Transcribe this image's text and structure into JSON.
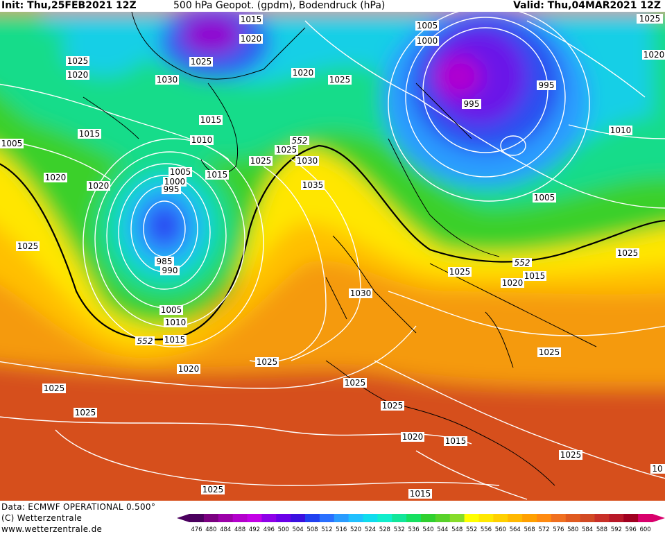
{
  "header": {
    "init": "Init: Thu,25FEB2021 12Z",
    "title": "500 hPa Geopot. (gpdm), Bodendruck (hPa)",
    "valid": "Valid: Thu,04MAR2021 12Z"
  },
  "footer": {
    "data_source": "Data: ECMWF OPERATIONAL 0.500°",
    "copyright": "(C) Wetterzentrale",
    "url": "www.wetterzentrale.de"
  },
  "legend": {
    "values": [
      "476",
      "480",
      "484",
      "488",
      "492",
      "496",
      "500",
      "504",
      "508",
      "512",
      "516",
      "520",
      "524",
      "528",
      "532",
      "536",
      "540",
      "544",
      "548",
      "552",
      "556",
      "560",
      "564",
      "568",
      "572",
      "576",
      "580",
      "584",
      "588",
      "592",
      "596",
      "600"
    ],
    "colors": [
      "#4b005e",
      "#7a0080",
      "#9b00a8",
      "#b300cc",
      "#c300e6",
      "#8e00e8",
      "#6a00e8",
      "#3a10e0",
      "#2040f0",
      "#2a70ff",
      "#2a9cff",
      "#20c0ff",
      "#10dcee",
      "#10eecc",
      "#12e69a",
      "#16e060",
      "#30d030",
      "#58d22a",
      "#86dc2a",
      "#ffff00",
      "#ffe800",
      "#ffd000",
      "#ffb800",
      "#ffa000",
      "#ff8a10",
      "#f07020",
      "#e05a20",
      "#d24a24",
      "#c83028",
      "#b81828",
      "#a00020",
      "#d8006c"
    ]
  },
  "map_labels": {
    "isobars": [
      "1015",
      "1020",
      "1025",
      "1030",
      "1025",
      "1020",
      "1005",
      "1000",
      "995",
      "1010",
      "1025",
      "1020",
      "1025",
      "1020",
      "1015",
      "1005",
      "1010",
      "1020",
      "1015",
      "1005",
      "1000",
      "995",
      "1010",
      "985",
      "990",
      "1025",
      "1025",
      "1030",
      "1035",
      "1025",
      "1005",
      "1025",
      "1005",
      "1010",
      "1015",
      "1020",
      "1025",
      "1030",
      "1025",
      "1020",
      "1015",
      "1025",
      "1025",
      "1025",
      "1025",
      "1020",
      "1015",
      "1025",
      "1025",
      "1015",
      "10",
      "1020",
      "1010",
      "995"
    ],
    "height_552": [
      "552",
      "552",
      "552"
    ]
  }
}
